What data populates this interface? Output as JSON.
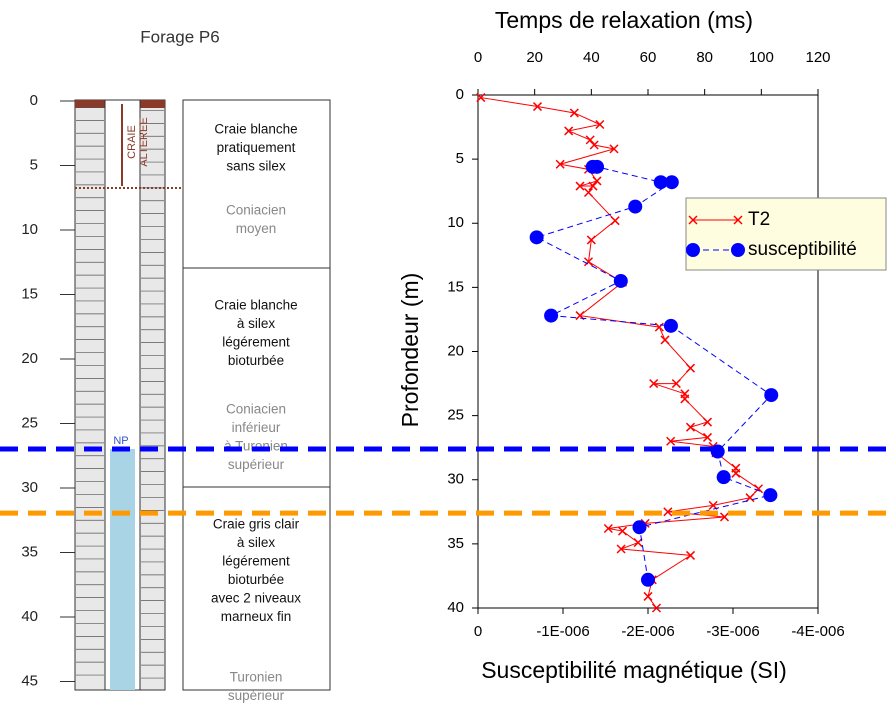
{
  "log": {
    "title": "Forage P6",
    "depth_ticks": [
      0,
      5,
      10,
      15,
      20,
      25,
      30,
      35,
      40,
      45
    ],
    "annotations": {
      "weathered": [
        "CRAIE",
        "ALTEREE"
      ],
      "water_level": "NP"
    },
    "units": [
      {
        "lithology": [
          "Craie blanche",
          "pratiquement",
          "sans silex"
        ],
        "stage": [
          "Coniacien",
          "moyen"
        ]
      },
      {
        "lithology": [
          "Craie blanche",
          "à silex",
          "légérement",
          "bioturbée"
        ],
        "stage": [
          "Coniacien",
          "inférieur",
          "à Turonien",
          "supérieur"
        ]
      },
      {
        "lithology": [
          "Craie gris clair",
          "à silex",
          "légérement",
          "bioturbée",
          "avec 2 niveaux",
          "marneux fin"
        ],
        "stage": [
          "Turonien",
          "supérieur"
        ]
      }
    ]
  },
  "chart_data": {
    "type": "scatter",
    "x2label": "Temps de relaxation (ms)",
    "xlabel": "Susceptibilité magnétique (SI)",
    "ylabel": "Profondeur (m)",
    "ylim": [
      0,
      40
    ],
    "yticks": [
      0,
      5,
      10,
      15,
      20,
      25,
      30,
      35,
      40
    ],
    "y_inverted": true,
    "x2lim": [
      0,
      120
    ],
    "x2ticks": [
      0,
      20,
      40,
      60,
      80,
      100,
      120
    ],
    "xlim": [
      0,
      -4e-06
    ],
    "xticks": [
      0,
      {
        "value": -1e-06,
        "label": "-1E-006"
      },
      {
        "value": -2e-06,
        "label": "-2E-006"
      },
      {
        "value": -3e-06,
        "label": "-3E-006"
      },
      {
        "value": -4e-06,
        "label": "-4E-006"
      }
    ],
    "legend": "upper right",
    "series": [
      {
        "name": "T2",
        "color": "#ff0000",
        "axis": "x2",
        "marker": "x",
        "line": "solid",
        "values": [
          1,
          21,
          34,
          43,
          32,
          39.6,
          41,
          48,
          29,
          39,
          42,
          36,
          40.6,
          39,
          48.4,
          40,
          39,
          51,
          36,
          64,
          66,
          75,
          70,
          62,
          73,
          73,
          81,
          75,
          81,
          68,
          83,
          84,
          91,
          91,
          99,
          96,
          83,
          67,
          87,
          59,
          46,
          51,
          56.5,
          50.5,
          75,
          61.5,
          60,
          63
        ],
        "depth": [
          0.2,
          0.9,
          1.4,
          2.3,
          2.8,
          3.5,
          3.9,
          4.2,
          5.4,
          5.8,
          6.7,
          7.1,
          7.1,
          7.6,
          9.8,
          11.3,
          13.0,
          14.6,
          17.2,
          18.1,
          19.1,
          21.3,
          22.5,
          22.5,
          23.3,
          23.7,
          25.5,
          25.9,
          26.7,
          27.0,
          27.4,
          27.9,
          29.1,
          29.5,
          30.7,
          31.4,
          32.0,
          32.5,
          32.9,
          33.4,
          33.8,
          34.0,
          34.9,
          35.4,
          35.9,
          37.8,
          39.1,
          40.0
        ]
      },
      {
        "name": "susceptibilité",
        "color": "#0000ff",
        "axis": "x",
        "marker": "circle",
        "line": "dashed",
        "values": [
          -1.35e-06,
          -1.4e-06,
          -2.15e-06,
          -2.28e-06,
          -1.85e-06,
          -6.9e-07,
          -1.68e-06,
          -8.6e-07,
          -2.27e-06,
          -3.45e-06,
          -2.82e-06,
          -2.89e-06,
          -3.44e-06,
          -1.9e-06,
          -2e-06
        ],
        "depth": [
          5.6,
          5.6,
          6.8,
          6.8,
          8.7,
          11.1,
          14.5,
          17.2,
          18.0,
          23.4,
          27.8,
          29.8,
          31.2,
          33.7,
          37.8
        ]
      }
    ],
    "reference_lines": [
      {
        "value": 27.6,
        "color": "#0000ff"
      },
      {
        "value": 32.6,
        "color": "#ff9900"
      }
    ]
  }
}
